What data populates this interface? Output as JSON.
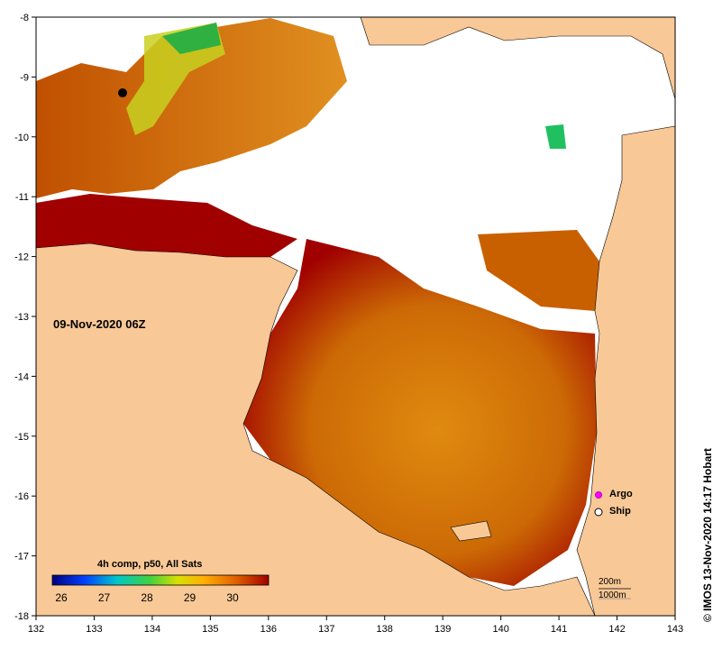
{
  "map": {
    "date_label": "09-Nov-2020 06Z",
    "credit": "© IMOS 13-Nov-2020 14:17 Hobart",
    "x_ticks": [
      "132",
      "133",
      "134",
      "135",
      "136",
      "137",
      "138",
      "139",
      "140",
      "141",
      "142",
      "143"
    ],
    "y_ticks": [
      "-8",
      "-9",
      "-10",
      "-11",
      "-12",
      "-13",
      "-14",
      "-15",
      "-16",
      "-17",
      "-18"
    ],
    "colorbar": {
      "title": "4h comp, p50, All Sats",
      "ticks": [
        "26",
        "27",
        "28",
        "29",
        "30"
      ],
      "colors": [
        "#00007f",
        "#0040ff",
        "#00c8c8",
        "#40d040",
        "#d8e000",
        "#ffb000",
        "#e06000",
        "#a00000"
      ]
    },
    "legend": {
      "argo": "Argo",
      "ship": "Ship"
    },
    "scale": {
      "contour_200": "200m",
      "contour_1000": "1000m"
    },
    "colors": {
      "land": "#f8c896",
      "sea_warm": "#c85a00",
      "sea_hot": "#a00000",
      "sea_mid": "#e08a10",
      "cloud": "#ffffff"
    }
  }
}
